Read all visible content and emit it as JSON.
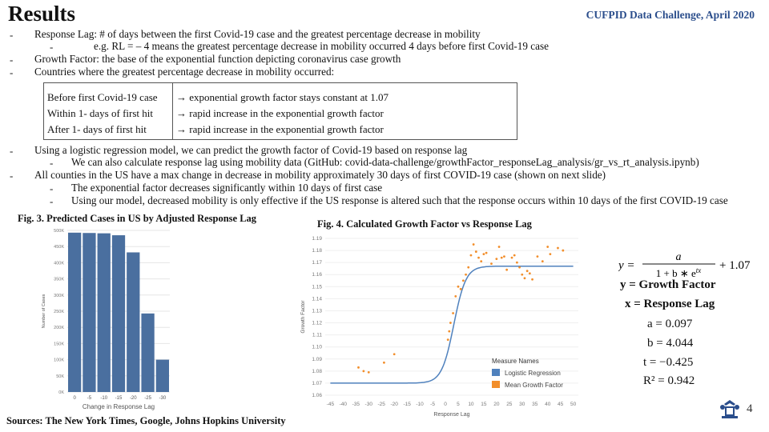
{
  "header": {
    "title": "Results",
    "brand": "CUFPID Data Challenge, April 2020"
  },
  "bullets": [
    "Response Lag: # of days between the first Covid-19 case and the greatest percentage decrease in mobility",
    "e.g. RL = – 4 means the greatest percentage decrease in mobility occurred 4 days before first Covid-19 case",
    "Growth Factor: the base of the exponential function depicting coronavirus case growth",
    "Countries where the greatest percentage decrease in mobility occurred:",
    "Using a logistic regression model, we can predict the growth factor of Covid-19 based on response lag",
    "We can also calculate response lag using mobility data (GitHub: covid-data-challenge/growthFactor_responseLag_analysis/gr_vs_rt_analysis.ipynb)",
    "All counties in the US have a max change in decrease in mobility approximately 30 days of first COVID-19 case (shown on next slide)",
    "The exponential factor decreases significantly within 10 days of first case",
    "Using our model, decreased mobility is only effective if the US response is altered such that the response occurs within 10 days of the first COVID-19 case"
  ],
  "table": {
    "rows": [
      {
        "condition": "Before first Covid-19 case",
        "result": "→ exponential growth factor stays constant at 1.07"
      },
      {
        "condition": "Within 1- days of first hit",
        "result": "→ rapid increase in the exponential growth factor"
      },
      {
        "condition": "After 1- days of first hit",
        "result": "→ rapid increase in the exponential growth factor"
      }
    ]
  },
  "fig3_caption": "Fig. 3. Predicted Cases in US by Adjusted Response Lag",
  "fig4_caption": "Fig. 4. Calculated Growth Factor vs Response Lag",
  "sources": "Sources: The New York Times, Google, Johns Hopkins University",
  "page_number": "4",
  "equations": {
    "y_label": "y = Growth Factor",
    "x_label": "x = Response Lag",
    "a": "a = 0.097",
    "b": "b = 4.044",
    "t": "t = −0.425",
    "r2": "R² = 0.942"
  },
  "colors": {
    "bar": "#4a6f9f",
    "logistic": "#4f81bd",
    "mean": "#f28e2b",
    "brand": "#2b4e8c"
  },
  "chart_data": [
    {
      "type": "bar",
      "categories": [
        "0",
        "-5",
        "-10",
        "-15",
        "-20",
        "-25",
        "-30"
      ],
      "values": [
        493000,
        492000,
        491000,
        485000,
        432000,
        243000,
        100000
      ],
      "xlabel": "Change in Response Lag",
      "ylabel": "Number of Cases",
      "ylim": [
        0,
        500000
      ],
      "yticks": [
        {
          "v": 0,
          "label": "0K"
        },
        {
          "v": 50000,
          "label": "50K"
        },
        {
          "v": 100000,
          "label": "100K"
        },
        {
          "v": 150000,
          "label": "150K"
        },
        {
          "v": 200000,
          "label": "200K"
        },
        {
          "v": 250000,
          "label": "250K"
        },
        {
          "v": 300000,
          "label": "300K"
        },
        {
          "v": 350000,
          "label": "350K"
        },
        {
          "v": 400000,
          "label": "400K"
        },
        {
          "v": 450000,
          "label": "450K"
        },
        {
          "v": 500000,
          "label": "500K"
        }
      ]
    },
    {
      "type": "scatter",
      "xlabel": "Response Lag",
      "ylabel": "Growth Factor",
      "xlim": [
        -47,
        52
      ],
      "ylim": [
        1.06,
        1.19
      ],
      "xticks": [
        -45,
        -40,
        -35,
        -30,
        -25,
        -20,
        -15,
        -10,
        -5,
        0,
        5,
        10,
        15,
        20,
        25,
        30,
        35,
        40,
        45,
        50
      ],
      "yticks": [
        1.06,
        1.07,
        1.08,
        1.09,
        1.1,
        1.11,
        1.12,
        1.13,
        1.14,
        1.15,
        1.16,
        1.17,
        1.18,
        1.19
      ],
      "legend_title": "Measure Names",
      "series": [
        {
          "name": "Logistic Regression",
          "kind": "line",
          "model": {
            "a": 0.097,
            "b": 4.044,
            "t": -0.425,
            "c": 1.07
          }
        },
        {
          "name": "Mean Growth Factor",
          "kind": "points",
          "points": [
            {
              "x": -34,
              "y": 1.083
            },
            {
              "x": -32,
              "y": 1.08
            },
            {
              "x": -30,
              "y": 1.079
            },
            {
              "x": -24,
              "y": 1.087
            },
            {
              "x": -20,
              "y": 1.094
            },
            {
              "x": 1,
              "y": 1.106
            },
            {
              "x": 1.5,
              "y": 1.113
            },
            {
              "x": 2,
              "y": 1.12
            },
            {
              "x": 3,
              "y": 1.128
            },
            {
              "x": 4,
              "y": 1.142
            },
            {
              "x": 5,
              "y": 1.15
            },
            {
              "x": 6,
              "y": 1.148
            },
            {
              "x": 7,
              "y": 1.155
            },
            {
              "x": 8,
              "y": 1.16
            },
            {
              "x": 9,
              "y": 1.166
            },
            {
              "x": 10,
              "y": 1.176
            },
            {
              "x": 11,
              "y": 1.185
            },
            {
              "x": 12,
              "y": 1.179
            },
            {
              "x": 13,
              "y": 1.174
            },
            {
              "x": 14,
              "y": 1.171
            },
            {
              "x": 15,
              "y": 1.177
            },
            {
              "x": 16,
              "y": 1.178
            },
            {
              "x": 18,
              "y": 1.169
            },
            {
              "x": 20,
              "y": 1.173
            },
            {
              "x": 21,
              "y": 1.183
            },
            {
              "x": 22,
              "y": 1.174
            },
            {
              "x": 23,
              "y": 1.175
            },
            {
              "x": 24,
              "y": 1.164
            },
            {
              "x": 26,
              "y": 1.174
            },
            {
              "x": 27,
              "y": 1.176
            },
            {
              "x": 28,
              "y": 1.17
            },
            {
              "x": 29,
              "y": 1.166
            },
            {
              "x": 30,
              "y": 1.16
            },
            {
              "x": 31,
              "y": 1.157
            },
            {
              "x": 32,
              "y": 1.163
            },
            {
              "x": 33,
              "y": 1.161
            },
            {
              "x": 34,
              "y": 1.156
            },
            {
              "x": 36,
              "y": 1.175
            },
            {
              "x": 38,
              "y": 1.171
            },
            {
              "x": 40,
              "y": 1.183
            },
            {
              "x": 41,
              "y": 1.177
            },
            {
              "x": 44,
              "y": 1.182
            },
            {
              "x": 46,
              "y": 1.18
            }
          ]
        }
      ]
    }
  ]
}
